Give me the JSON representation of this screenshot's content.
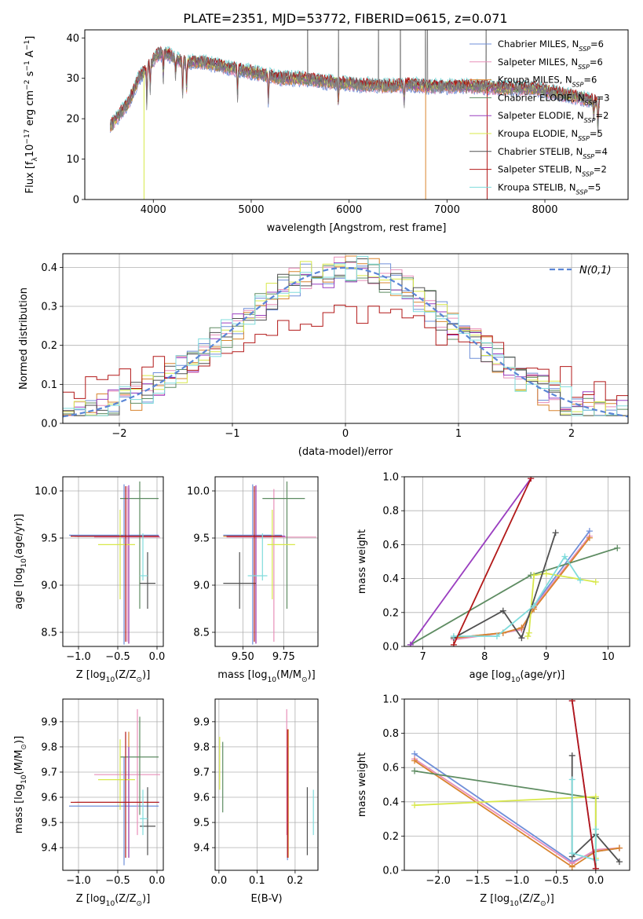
{
  "figure_title": "PLATE=2351, MJD=53772, FIBERID=0615, z=0.071",
  "models": [
    {
      "name": "Chabrier MILES",
      "nssp": "6",
      "color": "#6f8fd9"
    },
    {
      "name": "Salpeter MILES",
      "nssp": "6",
      "color": "#e88fb9"
    },
    {
      "name": "Kroupa MILES",
      "nssp": "6",
      "color": "#d8842e"
    },
    {
      "name": "Chabrier ELODIE",
      "nssp": "3",
      "color": "#5e8c62"
    },
    {
      "name": "Salpeter ELODIE",
      "nssp": "2",
      "color": "#9a3ec0"
    },
    {
      "name": "Kroupa ELODIE",
      "nssp": "5",
      "color": "#d8e84a"
    },
    {
      "name": "Chabrier STELIB",
      "nssp": "4",
      "color": "#505050"
    },
    {
      "name": "Salpeter STELIB",
      "nssp": "2",
      "color": "#b21818"
    },
    {
      "name": "Kroupa STELIB",
      "nssp": "5",
      "color": "#80dcdc"
    }
  ],
  "chart_data": [
    {
      "id": "spectrum",
      "type": "line",
      "title": "",
      "xlabel": "wavelength [Angstrom, rest frame]",
      "ylabel": "Flux [f_λ 10^-17 erg cm^-2 s^-1 A^-1]",
      "xlim": [
        3300,
        8850
      ],
      "ylim": [
        0,
        42
      ],
      "xticks": [
        4000,
        5000,
        6000,
        7000,
        8000
      ],
      "yticks": [
        0,
        10,
        20,
        30,
        40
      ],
      "legend": "top-right",
      "continuum": [
        [
          3560,
          18
        ],
        [
          3650,
          21
        ],
        [
          3750,
          24
        ],
        [
          3850,
          30
        ],
        [
          3950,
          33
        ],
        [
          4050,
          36
        ],
        [
          4150,
          36
        ],
        [
          4300,
          34
        ],
        [
          4500,
          34
        ],
        [
          4700,
          33
        ],
        [
          4900,
          32
        ],
        [
          5100,
          31
        ],
        [
          5300,
          30
        ],
        [
          5500,
          30
        ],
        [
          5800,
          29
        ],
        [
          6100,
          28.5
        ],
        [
          6400,
          28
        ],
        [
          6600,
          28.5
        ],
        [
          6800,
          28
        ],
        [
          7000,
          28
        ],
        [
          7300,
          28
        ],
        [
          7600,
          27.5
        ],
        [
          7900,
          27.5
        ],
        [
          8200,
          26
        ],
        [
          8500,
          24.5
        ],
        [
          8560,
          24
        ]
      ],
      "absorption_lines": [
        [
          3934,
          8
        ],
        [
          3969,
          6
        ],
        [
          4102,
          5
        ],
        [
          4227,
          4
        ],
        [
          4300,
          8
        ],
        [
          4340,
          6
        ],
        [
          4861,
          6
        ],
        [
          5175,
          6
        ],
        [
          5890,
          5
        ],
        [
          6563,
          4
        ],
        [
          8498,
          4
        ],
        [
          8542,
          6
        ]
      ],
      "sky_spikes": [
        3790,
        4110,
        5577,
        5893,
        6300,
        6525,
        6780,
        6800,
        6870,
        7250,
        7400
      ]
    },
    {
      "id": "residual-histogram",
      "type": "line",
      "xlabel": "(data-model)/error",
      "ylabel": "Normed distribution",
      "xlim": [
        -2.5,
        2.5
      ],
      "ylim": [
        0,
        0.435
      ],
      "xticks": [
        -2,
        -1,
        0,
        1,
        2
      ],
      "yticks": [
        0.0,
        0.1,
        0.2,
        0.3,
        0.4
      ],
      "legend": "top-right",
      "reference_curve": "N(0,1)",
      "bin_width": 0.1
    },
    {
      "id": "age-vs-Z",
      "type": "scatter",
      "xlabel": "Z [log10(Z/Z_sun)]",
      "ylabel": "age  [log10(age/yr)]",
      "xlim": [
        -1.2,
        0.08
      ],
      "ylim": [
        8.35,
        10.15
      ],
      "xticks": [
        -1.0,
        -0.5,
        0.0
      ],
      "yticks": [
        8.5,
        9.0,
        9.5,
        10.0
      ],
      "points": [
        {
          "x": -0.42,
          "xlo": -1.12,
          "xhi": 0.02,
          "y": 9.53,
          "ylo": 8.37,
          "yhi": 10.07
        },
        {
          "x": -0.38,
          "xlo": -0.8,
          "xhi": 0.04,
          "y": 9.51,
          "ylo": 8.4,
          "yhi": 10.05
        },
        {
          "x": -0.36,
          "xlo": -1.02,
          "xhi": 0.03,
          "y": 9.52,
          "ylo": 8.38,
          "yhi": 10.03
        },
        {
          "x": -0.22,
          "xlo": -0.47,
          "xhi": 0.02,
          "y": 9.92,
          "ylo": 8.75,
          "yhi": 10.1
        },
        {
          "x": -0.36,
          "xlo": -1.05,
          "xhi": 0.03,
          "y": 9.52,
          "ylo": 8.38,
          "yhi": 10.06
        },
        {
          "x": -0.47,
          "xlo": -0.75,
          "xhi": -0.28,
          "y": 9.43,
          "ylo": 8.85,
          "yhi": 9.8
        },
        {
          "x": -0.12,
          "xlo": -0.22,
          "xhi": -0.02,
          "y": 9.02,
          "ylo": 8.75,
          "yhi": 9.35
        },
        {
          "x": -0.4,
          "xlo": -1.1,
          "xhi": 0.02,
          "y": 9.52,
          "ylo": 8.4,
          "yhi": 10.05
        },
        {
          "x": -0.18,
          "xlo": -0.22,
          "xhi": -0.12,
          "y": 9.1,
          "ylo": 9.05,
          "yhi": 9.55
        }
      ]
    },
    {
      "id": "age-vs-mass",
      "type": "scatter",
      "xlabel": "mass [log10(M/M_sun)]",
      "ylabel": "",
      "xlim": [
        9.33,
        9.96
      ],
      "ylim": [
        8.35,
        10.15
      ],
      "xticks": [
        9.5,
        9.75
      ],
      "yticks": [
        8.5,
        9.0,
        9.5,
        10.0
      ],
      "points": [
        {
          "x": 9.56,
          "xlo": 9.38,
          "xhi": 9.74,
          "y": 9.53,
          "ylo": 8.37,
          "yhi": 10.07
        },
        {
          "x": 9.69,
          "xlo": 9.4,
          "xhi": 9.95,
          "y": 9.51,
          "ylo": 8.4,
          "yhi": 10.02
        },
        {
          "x": 9.58,
          "xlo": 9.38,
          "xhi": 9.75,
          "y": 9.52,
          "ylo": 8.38,
          "yhi": 10.05
        },
        {
          "x": 9.77,
          "xlo": 9.62,
          "xhi": 9.88,
          "y": 9.92,
          "ylo": 8.75,
          "yhi": 10.1
        },
        {
          "x": 9.58,
          "xlo": 9.4,
          "xhi": 9.76,
          "y": 9.52,
          "ylo": 8.38,
          "yhi": 10.06
        },
        {
          "x": 9.68,
          "xlo": 9.65,
          "xhi": 9.82,
          "y": 9.43,
          "ylo": 8.85,
          "yhi": 9.8
        },
        {
          "x": 9.48,
          "xlo": 9.38,
          "xhi": 9.58,
          "y": 9.02,
          "ylo": 8.75,
          "yhi": 9.35
        },
        {
          "x": 9.57,
          "xlo": 9.4,
          "xhi": 9.74,
          "y": 9.52,
          "ylo": 8.4,
          "yhi": 10.05
        },
        {
          "x": 9.62,
          "xlo": 9.53,
          "xhi": 9.65,
          "y": 9.1,
          "ylo": 9.05,
          "yhi": 9.55
        }
      ]
    },
    {
      "id": "mass-weight-vs-age",
      "type": "line",
      "xlabel": "age  [log10(age/yr)]",
      "ylabel": "mass weight",
      "xlim": [
        6.7,
        10.35
      ],
      "ylim": [
        0,
        1.0
      ],
      "xticks": [
        7,
        8,
        9,
        10
      ],
      "yticks": [
        0.0,
        0.2,
        0.4,
        0.6,
        0.8,
        1.0
      ],
      "series": [
        {
          "x": [
            7.5,
            8.3,
            8.6,
            8.8,
            9.7
          ],
          "y": [
            0.05,
            0.08,
            0.1,
            0.24,
            0.68
          ]
        },
        {
          "x": [
            7.5,
            8.3,
            8.6,
            8.8,
            9.7
          ],
          "y": [
            0.04,
            0.08,
            0.1,
            0.23,
            0.65
          ]
        },
        {
          "x": [
            7.5,
            8.3,
            8.6,
            8.8,
            9.7
          ],
          "y": [
            0.05,
            0.08,
            0.11,
            0.22,
            0.64
          ]
        },
        {
          "x": [
            6.8,
            8.75,
            10.15
          ],
          "y": [
            0.01,
            0.42,
            0.58
          ]
        },
        {
          "x": [
            6.8,
            8.75
          ],
          "y": [
            0.01,
            0.99
          ]
        },
        {
          "x": [
            8.7,
            8.72,
            8.8,
            9.0,
            9.8
          ],
          "y": [
            0.06,
            0.08,
            0.42,
            0.43,
            0.38
          ]
        },
        {
          "x": [
            7.5,
            8.3,
            8.6,
            9.15
          ],
          "y": [
            0.05,
            0.21,
            0.05,
            0.67
          ]
        },
        {
          "x": [
            7.5,
            8.75
          ],
          "y": [
            0.01,
            0.99
          ]
        },
        {
          "x": [
            7.5,
            8.2,
            8.8,
            9.3,
            9.55
          ],
          "y": [
            0.06,
            0.06,
            0.24,
            0.53,
            0.39
          ]
        }
      ]
    },
    {
      "id": "mass-vs-Z",
      "type": "scatter",
      "xlabel": "Z [log10(Z/Z_sun)]",
      "ylabel": "mass [log10(M/M_sun)]",
      "xlim": [
        -1.2,
        0.08
      ],
      "ylim": [
        9.31,
        9.99
      ],
      "xticks": [
        -1.0,
        -0.5,
        0.0
      ],
      "yticks": [
        9.4,
        9.5,
        9.6,
        9.7,
        9.8,
        9.9
      ],
      "points": [
        {
          "x": -0.42,
          "xlo": -1.12,
          "xhi": 0.02,
          "y": 9.565,
          "ylo": 9.33,
          "yhi": 9.76
        },
        {
          "x": -0.25,
          "xlo": -0.8,
          "xhi": 0.04,
          "y": 9.69,
          "ylo": 9.45,
          "yhi": 9.95
        },
        {
          "x": -0.36,
          "xlo": -1.02,
          "xhi": 0.03,
          "y": 9.58,
          "ylo": 9.36,
          "yhi": 9.86
        },
        {
          "x": -0.22,
          "xlo": -0.47,
          "xhi": 0.02,
          "y": 9.76,
          "ylo": 9.53,
          "yhi": 9.92
        },
        {
          "x": -0.36,
          "xlo": -1.05,
          "xhi": 0.03,
          "y": 9.58,
          "ylo": 9.36,
          "yhi": 9.8
        },
        {
          "x": -0.47,
          "xlo": -0.75,
          "xhi": -0.28,
          "y": 9.67,
          "ylo": 9.55,
          "yhi": 9.83
        },
        {
          "x": -0.12,
          "xlo": -0.22,
          "xhi": -0.02,
          "y": 9.485,
          "ylo": 9.37,
          "yhi": 9.64
        },
        {
          "x": -0.4,
          "xlo": -1.1,
          "xhi": 0.02,
          "y": 9.58,
          "ylo": 9.36,
          "yhi": 9.86
        },
        {
          "x": -0.18,
          "xlo": -0.22,
          "xhi": -0.12,
          "y": 9.515,
          "ylo": 9.45,
          "yhi": 9.63
        }
      ]
    },
    {
      "id": "mass-vs-EBV",
      "type": "scatter",
      "xlabel": "E(B-V)",
      "ylabel": "",
      "xlim": [
        -0.01,
        0.26
      ],
      "ylim": [
        9.31,
        9.99
      ],
      "xticks": [
        0.0,
        0.1,
        0.2
      ],
      "yticks": [
        9.4,
        9.5,
        9.6,
        9.7,
        9.8,
        9.9
      ],
      "points": [
        {
          "x": 0.18,
          "y": 9.57,
          "ylo": 9.35,
          "yhi": 9.76
        },
        {
          "x": 0.178,
          "y": 9.69,
          "ylo": 9.45,
          "yhi": 9.95
        },
        {
          "x": 0.182,
          "y": 9.58,
          "ylo": 9.36,
          "yhi": 9.87
        },
        {
          "x": 0.01,
          "y": 9.7,
          "ylo": 9.54,
          "yhi": 9.82
        },
        {
          "x": 0.18,
          "y": 9.58,
          "ylo": 9.36,
          "yhi": 9.8
        },
        {
          "x": 0.002,
          "y": 9.72,
          "ylo": 9.63,
          "yhi": 9.84
        },
        {
          "x": 0.232,
          "y": 9.5,
          "ylo": 9.37,
          "yhi": 9.64
        },
        {
          "x": 0.18,
          "y": 9.58,
          "ylo": 9.36,
          "yhi": 9.87
        },
        {
          "x": 0.248,
          "y": 9.55,
          "ylo": 9.45,
          "yhi": 9.63
        }
      ]
    },
    {
      "id": "mass-weight-vs-Z",
      "type": "line",
      "xlabel": "Z [log10(Z/Z_sun)]",
      "ylabel": "mass weight",
      "xlim": [
        -2.43,
        0.43
      ],
      "ylim": [
        0,
        1.0
      ],
      "xticks": [
        -2.0,
        -1.5,
        -1.0,
        -0.5,
        0.0
      ],
      "yticks": [
        0.0,
        0.2,
        0.4,
        0.6,
        0.8,
        1.0
      ],
      "series": [
        {
          "x": [
            -2.3,
            -0.3,
            0.0,
            0.3
          ],
          "y": [
            0.68,
            0.05,
            0.11,
            0.13
          ]
        },
        {
          "x": [
            -2.3,
            -0.3,
            0.0,
            0.3
          ],
          "y": [
            0.65,
            0.04,
            0.12,
            0.13
          ]
        },
        {
          "x": [
            -2.3,
            -0.3,
            0.0,
            0.3
          ],
          "y": [
            0.64,
            0.02,
            0.11,
            0.13
          ]
        },
        {
          "x": [
            -2.3,
            0.0,
            0.0
          ],
          "y": [
            0.58,
            0.42,
            0.01
          ]
        },
        {
          "x": [
            -0.3,
            0.0
          ],
          "y": [
            0.99,
            0.01
          ]
        },
        {
          "x": [
            -2.3,
            0.0,
            0.0
          ],
          "y": [
            0.38,
            0.43,
            0.07
          ]
        },
        {
          "x": [
            -0.3,
            -0.3,
            0.0,
            0.3
          ],
          "y": [
            0.67,
            0.08,
            0.21,
            0.05
          ]
        },
        {
          "x": [
            -0.3,
            0.0
          ],
          "y": [
            0.99,
            0.01
          ]
        },
        {
          "x": [
            -0.3,
            -0.3,
            0.0,
            0.0
          ],
          "y": [
            0.53,
            0.1,
            0.06,
            0.24
          ]
        }
      ]
    }
  ]
}
